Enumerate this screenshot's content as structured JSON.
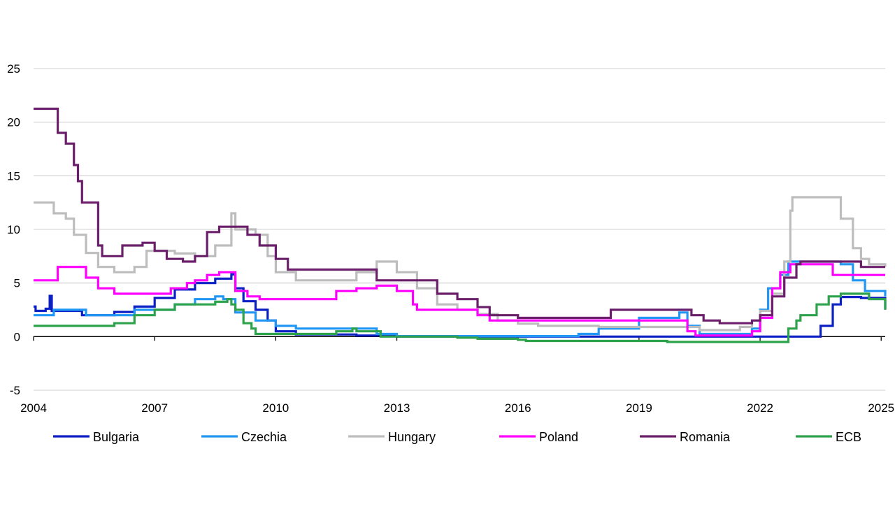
{
  "chart_data": {
    "type": "line",
    "title": "",
    "xlabel": "",
    "ylabel": "",
    "xlim": [
      2004.0,
      2025.1
    ],
    "ylim": [
      -5,
      25
    ],
    "x_ticks": [
      2004,
      2007,
      2010,
      2013,
      2016,
      2019,
      2022,
      2025
    ],
    "x_tick_labels": [
      "2004",
      "2007",
      "2010",
      "2013",
      "2016",
      "2019",
      "2022",
      "2025"
    ],
    "y_ticks": [
      -5,
      0,
      5,
      10,
      15,
      20,
      25
    ],
    "y_tick_labels": [
      "-5",
      "0",
      "5",
      "10",
      "15",
      "20",
      "25"
    ],
    "grid": "horizontal",
    "legend_position": "bottom",
    "series": [
      {
        "name": "Bulgaria",
        "color": "#0a1fc4",
        "x": [
          2004.0,
          2004.05,
          2004.1,
          2004.3,
          2004.4,
          2004.45,
          2004.5,
          2005.0,
          2005.2,
          2005.6,
          2006.0,
          2006.5,
          2007.0,
          2007.5,
          2008.0,
          2008.5,
          2008.9,
          2009.0,
          2009.2,
          2009.5,
          2009.8,
          2010.0,
          2010.5,
          2011.0,
          2012.0,
          2013.0,
          2014.0,
          2015.0,
          2016.0,
          2018.0,
          2020.0,
          2021.5,
          2022.0,
          2023.0,
          2023.4,
          2023.5,
          2023.8,
          2024.0,
          2024.5,
          2025.1
        ],
        "y": [
          2.8,
          2.4,
          2.4,
          2.6,
          3.8,
          2.4,
          2.4,
          2.4,
          2.0,
          2.0,
          2.3,
          2.8,
          3.6,
          4.4,
          5.0,
          5.4,
          5.8,
          4.5,
          3.3,
          2.5,
          1.5,
          0.5,
          0.2,
          0.2,
          0.1,
          0.0,
          0.0,
          0.0,
          0.0,
          0.0,
          0.0,
          0.0,
          0.0,
          0.0,
          0.0,
          1.0,
          3.0,
          3.7,
          3.6,
          2.6
        ]
      },
      {
        "name": "Czechia",
        "color": "#2196f3",
        "x": [
          2004.0,
          2004.5,
          2005.0,
          2005.3,
          2006.0,
          2006.5,
          2007.0,
          2007.5,
          2008.0,
          2008.5,
          2008.7,
          2009.0,
          2009.5,
          2010.0,
          2010.5,
          2012.0,
          2012.5,
          2013.0,
          2016.0,
          2017.0,
          2017.5,
          2018.0,
          2019.0,
          2020.0,
          2020.2,
          2020.5,
          2021.5,
          2021.8,
          2022.0,
          2022.2,
          2022.5,
          2022.7,
          2023.5,
          2024.0,
          2024.3,
          2024.6,
          2025.1
        ],
        "y": [
          2.0,
          2.5,
          2.5,
          2.0,
          2.0,
          2.5,
          2.5,
          3.0,
          3.5,
          3.75,
          3.5,
          2.25,
          1.5,
          1.0,
          0.75,
          0.75,
          0.25,
          0.05,
          0.05,
          0.05,
          0.25,
          0.75,
          1.75,
          2.25,
          1.0,
          0.25,
          0.25,
          0.75,
          2.5,
          4.5,
          5.75,
          7.0,
          7.0,
          6.75,
          5.25,
          4.25,
          3.75
        ]
      },
      {
        "name": "Hungary",
        "color": "#bdbdbd",
        "x": [
          2004.0,
          2004.2,
          2004.5,
          2004.8,
          2005.0,
          2005.3,
          2005.6,
          2006.0,
          2006.5,
          2006.8,
          2007.0,
          2007.5,
          2008.0,
          2008.5,
          2008.8,
          2008.9,
          2009.0,
          2009.5,
          2009.8,
          2010.0,
          2010.5,
          2011.0,
          2012.0,
          2012.5,
          2013.0,
          2013.5,
          2014.0,
          2014.5,
          2015.0,
          2015.5,
          2016.0,
          2016.5,
          2018.0,
          2020.0,
          2020.5,
          2021.0,
          2021.5,
          2021.8,
          2022.0,
          2022.3,
          2022.6,
          2022.75,
          2022.8,
          2023.5,
          2023.75,
          2024.0,
          2024.3,
          2024.5,
          2024.7,
          2025.1
        ],
        "y": [
          12.5,
          12.5,
          11.5,
          11.0,
          9.5,
          7.8,
          6.5,
          6.0,
          6.5,
          8.0,
          8.0,
          7.75,
          7.5,
          8.5,
          8.5,
          11.5,
          10.0,
          9.5,
          7.5,
          6.0,
          5.25,
          5.25,
          6.0,
          7.0,
          6.0,
          4.5,
          3.0,
          2.5,
          2.1,
          1.5,
          1.2,
          1.0,
          0.9,
          0.9,
          0.6,
          0.6,
          0.9,
          1.5,
          2.4,
          4.0,
          7.0,
          11.75,
          13.0,
          13.0,
          13.0,
          11.0,
          8.25,
          7.25,
          6.75,
          6.5
        ]
      },
      {
        "name": "Poland",
        "color": "#ff00ff",
        "x": [
          2004.0,
          2004.4,
          2004.6,
          2005.0,
          2005.3,
          2005.6,
          2006.0,
          2006.5,
          2007.0,
          2007.4,
          2007.8,
          2008.0,
          2008.3,
          2008.6,
          2008.9,
          2009.0,
          2009.3,
          2009.6,
          2010.0,
          2010.5,
          2011.0,
          2011.5,
          2012.0,
          2012.5,
          2012.8,
          2013.0,
          2013.4,
          2013.5,
          2014.8,
          2015.0,
          2015.3,
          2016.0,
          2018.0,
          2020.0,
          2020.2,
          2020.4,
          2021.5,
          2021.8,
          2022.0,
          2022.3,
          2022.5,
          2022.75,
          2023.0,
          2023.5,
          2023.7,
          2023.8,
          2025.1
        ],
        "y": [
          5.25,
          5.25,
          6.5,
          6.5,
          5.5,
          4.5,
          4.0,
          4.0,
          4.0,
          4.5,
          5.0,
          5.25,
          5.75,
          6.0,
          6.0,
          4.25,
          3.75,
          3.5,
          3.5,
          3.5,
          3.5,
          4.25,
          4.5,
          4.75,
          4.75,
          4.25,
          3.0,
          2.5,
          2.5,
          2.0,
          1.5,
          1.5,
          1.5,
          1.5,
          0.5,
          0.1,
          0.1,
          0.5,
          1.75,
          4.5,
          6.0,
          6.75,
          6.75,
          6.75,
          6.75,
          5.75,
          5.75
        ]
      },
      {
        "name": "Romania",
        "color": "#6b1f6b",
        "x": [
          2004.0,
          2004.4,
          2004.6,
          2004.8,
          2005.0,
          2005.1,
          2005.2,
          2005.3,
          2005.6,
          2005.7,
          2006.0,
          2006.2,
          2006.7,
          2007.0,
          2007.3,
          2007.7,
          2008.0,
          2008.3,
          2008.6,
          2009.0,
          2009.3,
          2009.6,
          2010.0,
          2010.3,
          2011.0,
          2012.0,
          2012.5,
          2013.0,
          2013.5,
          2014.0,
          2014.5,
          2015.0,
          2015.3,
          2016.0,
          2018.0,
          2018.3,
          2020.0,
          2020.3,
          2020.6,
          2021.0,
          2021.5,
          2021.8,
          2022.0,
          2022.3,
          2022.6,
          2022.9,
          2023.0,
          2024.0,
          2024.2,
          2024.5,
          2025.1
        ],
        "y": [
          21.25,
          21.25,
          19.0,
          18.0,
          16.0,
          14.5,
          12.5,
          12.5,
          8.5,
          7.5,
          7.5,
          8.5,
          8.75,
          8.0,
          7.25,
          7.0,
          7.5,
          9.75,
          10.25,
          10.25,
          9.5,
          8.5,
          7.25,
          6.25,
          6.25,
          6.25,
          5.25,
          5.25,
          5.25,
          4.0,
          3.5,
          2.75,
          2.0,
          1.75,
          1.75,
          2.5,
          2.5,
          2.0,
          1.5,
          1.25,
          1.25,
          1.5,
          2.0,
          3.75,
          5.5,
          6.75,
          7.0,
          7.0,
          7.0,
          6.5,
          6.5
        ]
      },
      {
        "name": "ECB",
        "color": "#2ca24a",
        "x": [
          2004.0,
          2005.9,
          2006.0,
          2006.5,
          2007.0,
          2007.5,
          2008.5,
          2008.8,
          2008.9,
          2009.0,
          2009.2,
          2009.4,
          2009.5,
          2010.0,
          2011.3,
          2011.5,
          2011.9,
          2012.0,
          2012.6,
          2013.0,
          2014.0,
          2014.5,
          2015.0,
          2016.0,
          2016.2,
          2019.0,
          2019.7,
          2022.5,
          2022.7,
          2022.9,
          2023.0,
          2023.4,
          2023.7,
          2024.0,
          2024.4,
          2024.7,
          2025.1
        ],
        "y": [
          1.0,
          1.0,
          1.25,
          2.0,
          2.5,
          3.0,
          3.25,
          3.5,
          3.0,
          2.5,
          1.25,
          0.75,
          0.25,
          0.25,
          0.25,
          0.5,
          0.75,
          0.5,
          0.0,
          0.0,
          0.0,
          -0.1,
          -0.2,
          -0.3,
          -0.4,
          -0.4,
          -0.5,
          -0.5,
          0.75,
          1.5,
          2.0,
          3.0,
          3.75,
          4.0,
          4.0,
          3.5,
          2.5
        ]
      }
    ]
  }
}
